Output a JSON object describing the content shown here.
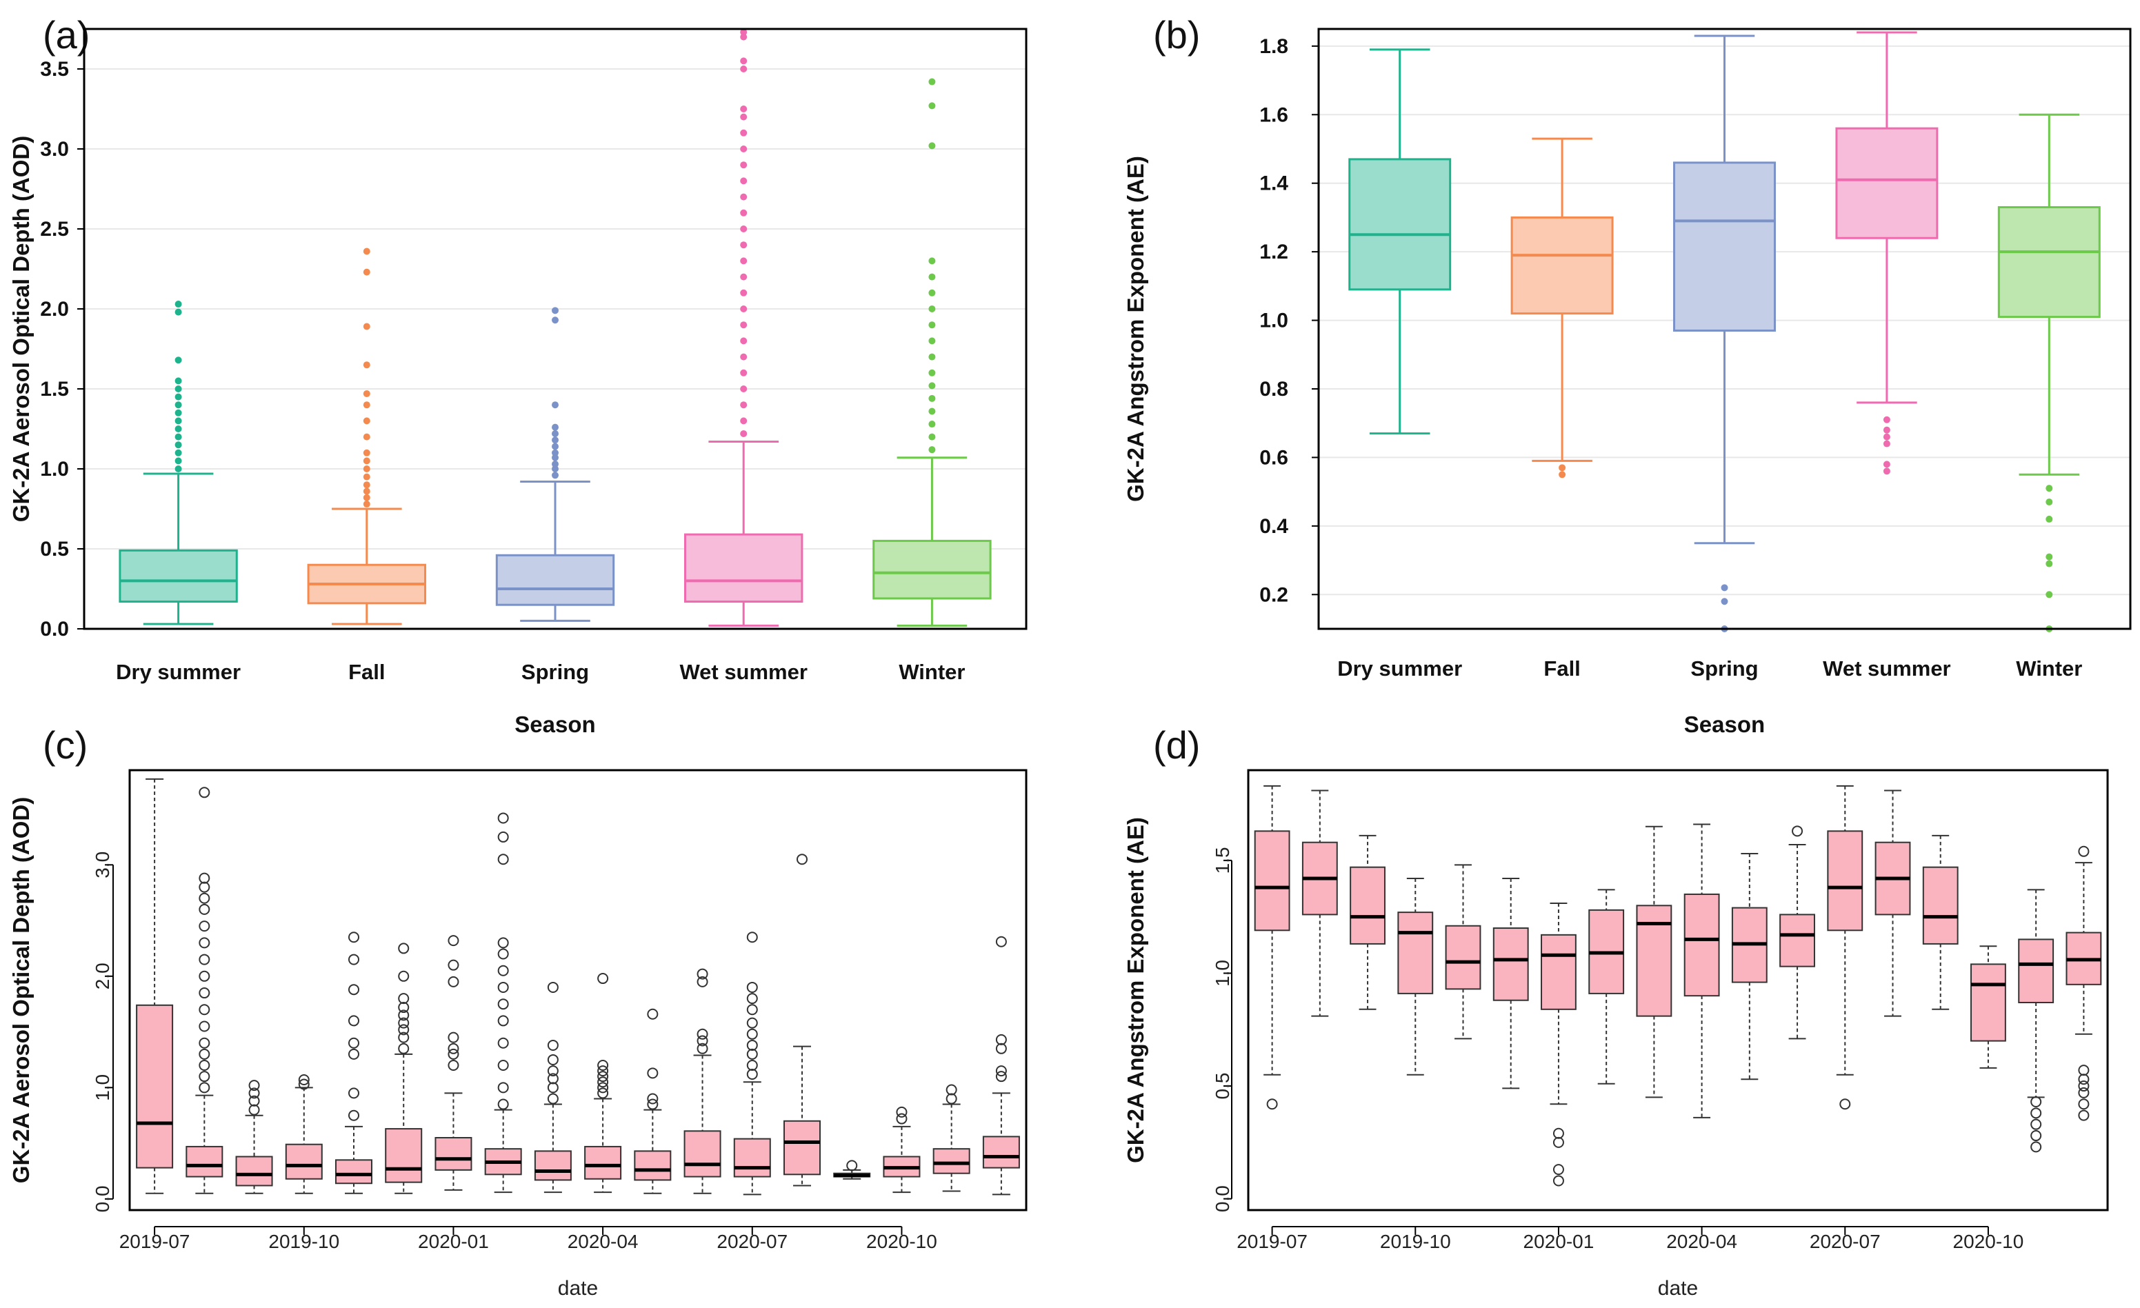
{
  "chart_data": [
    {
      "panel": "(a)",
      "type": "box",
      "style": "colored",
      "ylabel": "GK-2A Aerosol Optical Depth (AOD)",
      "xlabel": "Season",
      "ylim": [
        0,
        3.75
      ],
      "yticks": [
        "0.0",
        "0.5",
        "1.0",
        "1.5",
        "2.0",
        "2.5",
        "3.0",
        "3.5"
      ],
      "categories": [
        "Dry summer",
        "Fall",
        "Spring",
        "Wet summer",
        "Winter"
      ],
      "colors": [
        "#1fb38d",
        "#f58a4f",
        "#7b92c8",
        "#f06ab0",
        "#6cc94a"
      ],
      "boxes": [
        {
          "min": 0.03,
          "q1": 0.17,
          "median": 0.3,
          "q3": 0.49,
          "max": 0.97,
          "outliers": [
            1.0,
            1.05,
            1.1,
            1.15,
            1.2,
            1.25,
            1.3,
            1.35,
            1.4,
            1.45,
            1.5,
            1.55,
            1.68,
            1.98,
            2.03
          ]
        },
        {
          "min": 0.03,
          "q1": 0.16,
          "median": 0.28,
          "q3": 0.4,
          "max": 0.75,
          "outliers": [
            0.78,
            0.82,
            0.86,
            0.9,
            0.95,
            1.0,
            1.05,
            1.1,
            1.2,
            1.3,
            1.4,
            1.47,
            1.65,
            1.89,
            2.23,
            2.36
          ]
        },
        {
          "min": 0.05,
          "q1": 0.15,
          "median": 0.25,
          "q3": 0.46,
          "max": 0.92,
          "outliers": [
            0.96,
            1.0,
            1.03,
            1.07,
            1.1,
            1.14,
            1.18,
            1.22,
            1.26,
            1.4,
            1.93,
            1.99
          ]
        },
        {
          "min": 0.02,
          "q1": 0.17,
          "median": 0.3,
          "q3": 0.59,
          "max": 1.17,
          "outliers": [
            1.22,
            1.3,
            1.4,
            1.5,
            1.6,
            1.7,
            1.8,
            1.9,
            2.0,
            2.1,
            2.2,
            2.3,
            2.4,
            2.5,
            2.6,
            2.7,
            2.8,
            2.9,
            3.0,
            3.1,
            3.2,
            3.25,
            3.5,
            3.55,
            3.7,
            3.73
          ]
        },
        {
          "min": 0.02,
          "q1": 0.19,
          "median": 0.35,
          "q3": 0.55,
          "max": 1.07,
          "outliers": [
            1.12,
            1.2,
            1.28,
            1.36,
            1.44,
            1.52,
            1.6,
            1.7,
            1.8,
            1.9,
            2.0,
            2.1,
            2.2,
            2.3,
            3.02,
            3.27,
            3.42
          ]
        }
      ]
    },
    {
      "panel": "(b)",
      "type": "box",
      "style": "colored",
      "ylabel": "GK-2A Angstrom Exponent (AE)",
      "xlabel": "Season",
      "ylim": [
        0.1,
        1.85
      ],
      "yticks": [
        "0.2",
        "0.4",
        "0.6",
        "0.8",
        "1.0",
        "1.2",
        "1.4",
        "1.6",
        "1.8"
      ],
      "categories": [
        "Dry summer",
        "Fall",
        "Spring",
        "Wet summer",
        "Winter"
      ],
      "colors": [
        "#1fb38d",
        "#f58a4f",
        "#7b92c8",
        "#f06ab0",
        "#6cc94a"
      ],
      "boxes": [
        {
          "min": 0.67,
          "q1": 1.09,
          "median": 1.25,
          "q3": 1.47,
          "max": 1.79,
          "outliers": []
        },
        {
          "min": 0.59,
          "q1": 1.02,
          "median": 1.19,
          "q3": 1.3,
          "max": 1.53,
          "outliers": [
            0.55,
            0.57
          ]
        },
        {
          "min": 0.35,
          "q1": 0.97,
          "median": 1.29,
          "q3": 1.46,
          "max": 1.83,
          "outliers": [
            0.1,
            0.18,
            0.22
          ]
        },
        {
          "min": 0.76,
          "q1": 1.24,
          "median": 1.41,
          "q3": 1.56,
          "max": 1.84,
          "outliers": [
            0.56,
            0.58,
            0.64,
            0.66,
            0.68,
            0.71
          ]
        },
        {
          "min": 0.55,
          "q1": 1.01,
          "median": 1.2,
          "q3": 1.33,
          "max": 1.6,
          "outliers": [
            0.1,
            0.2,
            0.29,
            0.31,
            0.42,
            0.47,
            0.51
          ]
        }
      ]
    },
    {
      "panel": "(c)",
      "type": "box",
      "style": "monthly",
      "ylabel": "GK-2A Aerosol Optical Depth (AOD)",
      "xlabel": "date",
      "ylim": [
        -0.1,
        3.85
      ],
      "yticks": [
        "0.0",
        "1.0",
        "2.0",
        "3.0"
      ],
      "xticks": [
        "2019-07",
        "2019-10",
        "2020-01",
        "2020-04",
        "2020-07",
        "2020-10"
      ],
      "xtick_positions": [
        0,
        3,
        6,
        9,
        12,
        15
      ],
      "fill": "#f9b4c0",
      "boxes": [
        {
          "min": 0.05,
          "q1": 0.28,
          "median": 0.68,
          "q3": 1.74,
          "max": 3.77,
          "outliers": []
        },
        {
          "min": 0.05,
          "q1": 0.2,
          "median": 0.3,
          "q3": 0.47,
          "max": 0.93,
          "outliers": [
            1.0,
            1.1,
            1.2,
            1.3,
            1.4,
            1.55,
            1.7,
            1.85,
            2.0,
            2.15,
            2.3,
            2.45,
            2.6,
            2.7,
            2.8,
            2.88,
            3.65
          ]
        },
        {
          "min": 0.05,
          "q1": 0.12,
          "median": 0.22,
          "q3": 0.38,
          "max": 0.75,
          "outliers": [
            0.8,
            0.88,
            0.95,
            1.02
          ]
        },
        {
          "min": 0.05,
          "q1": 0.18,
          "median": 0.3,
          "q3": 0.49,
          "max": 1.0,
          "outliers": [
            1.03,
            1.07
          ]
        },
        {
          "min": 0.05,
          "q1": 0.14,
          "median": 0.22,
          "q3": 0.35,
          "max": 0.65,
          "outliers": [
            0.75,
            0.95,
            1.3,
            1.4,
            1.6,
            1.88,
            2.15,
            2.35
          ]
        },
        {
          "min": 0.05,
          "q1": 0.15,
          "median": 0.27,
          "q3": 0.63,
          "max": 1.3,
          "outliers": [
            1.35,
            1.45,
            1.52,
            1.58,
            1.65,
            1.72,
            1.8,
            2.0,
            2.25
          ]
        },
        {
          "min": 0.08,
          "q1": 0.26,
          "median": 0.36,
          "q3": 0.55,
          "max": 0.95,
          "outliers": [
            1.2,
            1.3,
            1.35,
            1.45,
            1.95,
            2.1,
            2.32
          ]
        },
        {
          "min": 0.06,
          "q1": 0.22,
          "median": 0.33,
          "q3": 0.45,
          "max": 0.8,
          "outliers": [
            0.85,
            1.0,
            1.2,
            1.4,
            1.6,
            1.75,
            1.9,
            2.05,
            2.2,
            2.3,
            3.05,
            3.25,
            3.42
          ]
        },
        {
          "min": 0.06,
          "q1": 0.17,
          "median": 0.25,
          "q3": 0.43,
          "max": 0.85,
          "outliers": [
            0.9,
            1.0,
            1.08,
            1.15,
            1.25,
            1.38,
            1.9
          ]
        },
        {
          "min": 0.06,
          "q1": 0.18,
          "median": 0.3,
          "q3": 0.47,
          "max": 0.9,
          "outliers": [
            0.95,
            1.0,
            1.05,
            1.1,
            1.15,
            1.2,
            1.98
          ]
        },
        {
          "min": 0.05,
          "q1": 0.17,
          "median": 0.26,
          "q3": 0.43,
          "max": 0.8,
          "outliers": [
            0.85,
            0.9,
            1.13,
            1.66
          ]
        },
        {
          "min": 0.05,
          "q1": 0.2,
          "median": 0.31,
          "q3": 0.61,
          "max": 1.29,
          "outliers": [
            1.35,
            1.42,
            1.48,
            1.95,
            2.02
          ]
        },
        {
          "min": 0.04,
          "q1": 0.2,
          "median": 0.28,
          "q3": 0.54,
          "max": 1.05,
          "outliers": [
            1.12,
            1.2,
            1.3,
            1.38,
            1.48,
            1.58,
            1.7,
            1.8,
            1.9,
            2.35
          ]
        },
        {
          "min": 0.12,
          "q1": 0.22,
          "median": 0.51,
          "q3": 0.7,
          "max": 1.37,
          "outliers": [
            3.05
          ]
        },
        {
          "min": 0.18,
          "q1": 0.2,
          "median": 0.21,
          "q3": 0.23,
          "max": 0.26,
          "outliers": [
            0.3
          ]
        },
        {
          "min": 0.06,
          "q1": 0.2,
          "median": 0.28,
          "q3": 0.38,
          "max": 0.65,
          "outliers": [
            0.72,
            0.78
          ]
        },
        {
          "min": 0.07,
          "q1": 0.23,
          "median": 0.32,
          "q3": 0.45,
          "max": 0.85,
          "outliers": [
            0.9,
            0.98
          ]
        },
        {
          "min": 0.04,
          "q1": 0.28,
          "median": 0.38,
          "q3": 0.56,
          "max": 0.95,
          "outliers": [
            1.1,
            1.15,
            1.35,
            1.43,
            2.31
          ]
        }
      ]
    },
    {
      "panel": "(d)",
      "type": "box",
      "style": "monthly",
      "ylabel": "GK-2A Angstrom Exponent (AE)",
      "xlabel": "date",
      "ylim": [
        -0.05,
        1.9
      ],
      "yticks": [
        "0.0",
        "0.5",
        "1.0",
        "1.5"
      ],
      "xticks": [
        "2019-07",
        "2019-10",
        "2020-01",
        "2020-04",
        "2020-07",
        "2020-10"
      ],
      "xtick_positions": [
        0,
        3,
        6,
        9,
        12,
        15
      ],
      "fill": "#f9b4c0",
      "boxes": [
        {
          "min": 0.55,
          "q1": 1.19,
          "median": 1.38,
          "q3": 1.63,
          "max": 1.83,
          "outliers": [
            0.42
          ]
        },
        {
          "min": 0.81,
          "q1": 1.26,
          "median": 1.42,
          "q3": 1.58,
          "max": 1.81,
          "outliers": []
        },
        {
          "min": 0.84,
          "q1": 1.13,
          "median": 1.25,
          "q3": 1.47,
          "max": 1.61,
          "outliers": []
        },
        {
          "min": 0.55,
          "q1": 0.91,
          "median": 1.18,
          "q3": 1.27,
          "max": 1.42,
          "outliers": []
        },
        {
          "min": 0.71,
          "q1": 0.93,
          "median": 1.05,
          "q3": 1.21,
          "max": 1.48,
          "outliers": []
        },
        {
          "min": 0.49,
          "q1": 0.88,
          "median": 1.06,
          "q3": 1.2,
          "max": 1.42,
          "outliers": []
        },
        {
          "min": 0.42,
          "q1": 0.84,
          "median": 1.08,
          "q3": 1.17,
          "max": 1.31,
          "outliers": [
            0.08,
            0.13,
            0.25,
            0.29
          ]
        },
        {
          "min": 0.51,
          "q1": 0.91,
          "median": 1.09,
          "q3": 1.28,
          "max": 1.37,
          "outliers": []
        },
        {
          "min": 0.45,
          "q1": 0.81,
          "median": 1.22,
          "q3": 1.3,
          "max": 1.65,
          "outliers": []
        },
        {
          "min": 0.36,
          "q1": 0.9,
          "median": 1.15,
          "q3": 1.35,
          "max": 1.66,
          "outliers": []
        },
        {
          "min": 0.53,
          "q1": 0.96,
          "median": 1.13,
          "q3": 1.29,
          "max": 1.53,
          "outliers": []
        },
        {
          "min": 0.71,
          "q1": 1.03,
          "median": 1.17,
          "q3": 1.26,
          "max": 1.57,
          "outliers": [
            1.63
          ]
        },
        {
          "min": 0.55,
          "q1": 1.19,
          "median": 1.38,
          "q3": 1.63,
          "max": 1.83,
          "outliers": [
            0.42
          ]
        },
        {
          "min": 0.81,
          "q1": 1.26,
          "median": 1.42,
          "q3": 1.58,
          "max": 1.81,
          "outliers": []
        },
        {
          "min": 0.84,
          "q1": 1.13,
          "median": 1.25,
          "q3": 1.47,
          "max": 1.61,
          "outliers": []
        },
        {
          "min": 0.58,
          "q1": 0.7,
          "median": 0.95,
          "q3": 1.04,
          "max": 1.12,
          "outliers": []
        },
        {
          "min": 0.45,
          "q1": 0.87,
          "median": 1.04,
          "q3": 1.15,
          "max": 1.37,
          "outliers": [
            0.23,
            0.28,
            0.33,
            0.38,
            0.43
          ]
        },
        {
          "min": 0.73,
          "q1": 0.95,
          "median": 1.06,
          "q3": 1.18,
          "max": 1.49,
          "outliers": [
            0.37,
            0.42,
            0.47,
            0.5,
            0.53,
            0.57,
            1.54
          ]
        }
      ]
    }
  ]
}
